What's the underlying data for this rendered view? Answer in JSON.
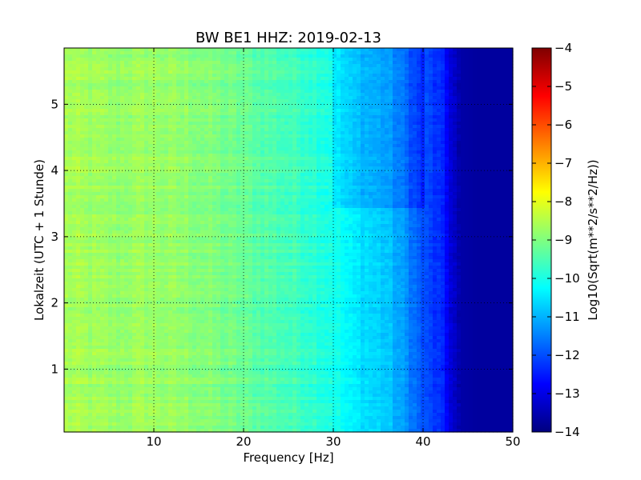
{
  "chart_data": {
    "type": "heatmap",
    "title": "BW BE1 HHZ: 2019-02-13",
    "xlabel": "Frequency [Hz]",
    "ylabel": "Lokalzeit (UTC + 1 Stunde)",
    "xlim": [
      0,
      50
    ],
    "ylim": [
      5.85,
      0.05
    ],
    "xticks": [
      10,
      20,
      30,
      40,
      50
    ],
    "xtick_labels": [
      "10",
      "20",
      "30",
      "40",
      "50"
    ],
    "yticks": [
      1,
      2,
      3,
      4,
      5
    ],
    "ytick_labels": [
      "1",
      "2",
      "3",
      "4",
      "5"
    ],
    "grid": true,
    "colorbar": {
      "label": "Log10(Sqrt(m**2/s**2/Hz))",
      "range": [
        -14,
        -4
      ],
      "ticks": [
        -4,
        -5,
        -6,
        -7,
        -8,
        -9,
        -10,
        -11,
        -12,
        -13,
        -14
      ],
      "tick_labels": [
        "−4",
        "−5",
        "−6",
        "−7",
        "−8",
        "−9",
        "−10",
        "−11",
        "−12",
        "−13",
        "−14"
      ],
      "colormap": "jet"
    },
    "frequency_profile": {
      "x": [
        0,
        3,
        6,
        9,
        12,
        15,
        18,
        21,
        24,
        27,
        30,
        32,
        34,
        36,
        38,
        40,
        42,
        44,
        46,
        48,
        50
      ],
      "y": [
        -8.6,
        -8.7,
        -8.8,
        -8.7,
        -8.8,
        -8.9,
        -9.1,
        -9.3,
        -9.5,
        -9.7,
        -10.0,
        -10.4,
        -10.6,
        -10.8,
        -11.3,
        -12.0,
        -12.4,
        -13.6,
        -13.7,
        -13.7,
        -13.7
      ]
    }
  }
}
